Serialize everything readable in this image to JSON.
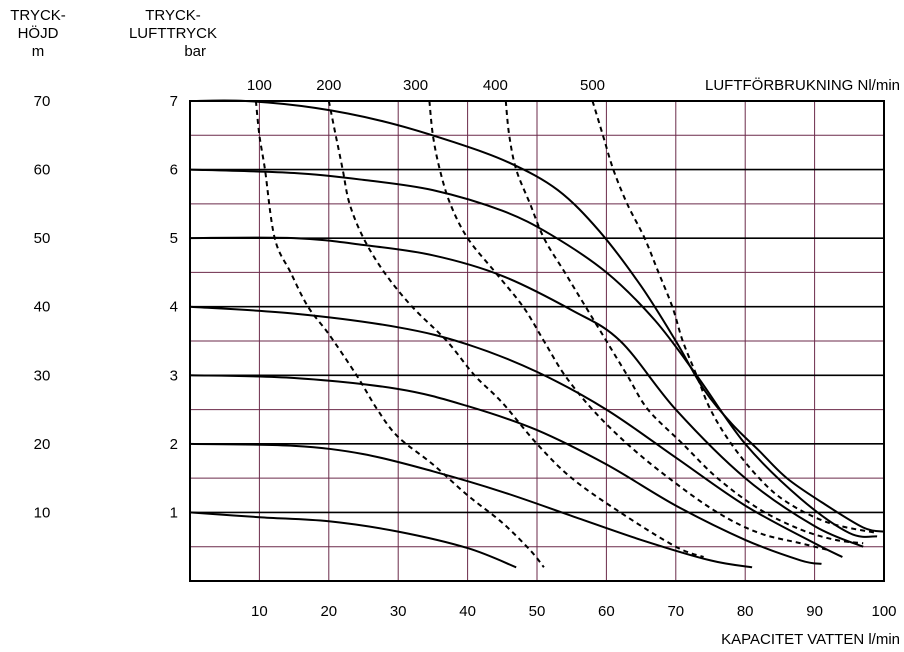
{
  "labels": {
    "left_axis_title": [
      "TRYCK-",
      "HÖJD",
      "m"
    ],
    "right_axis_title": [
      "TRYCK-",
      "LUFTTRYCK",
      "bar"
    ],
    "top_axis_title": "LUFTFÖRBRUKNING Nl/min",
    "bottom_axis_title": "KAPACITET VATTEN l/min"
  },
  "chart_data": {
    "type": "line",
    "title": "",
    "xlabel": "KAPACITET VATTEN l/min",
    "ylabel": "TRYCK-LUFTTRYCK bar",
    "xlim": [
      0,
      100
    ],
    "ylim": [
      0,
      7
    ],
    "x_ticks": [
      "10",
      "20",
      "30",
      "40",
      "50",
      "60",
      "70",
      "80",
      "90",
      "100"
    ],
    "x_tick_values": [
      10,
      20,
      30,
      40,
      50,
      60,
      70,
      80,
      90,
      100
    ],
    "y_ticks": [
      "1",
      "2",
      "3",
      "4",
      "5",
      "6",
      "7"
    ],
    "y_tick_values": [
      1,
      2,
      3,
      4,
      5,
      6,
      7
    ],
    "y2_ticks": [
      "10",
      "20",
      "30",
      "40",
      "50",
      "60",
      "70"
    ],
    "top_ticks": [
      "100",
      "200",
      "300",
      "400",
      "500"
    ],
    "top_tick_x_values": [
      10,
      20,
      32.5,
      44,
      58
    ],
    "grid": true,
    "minor_horizontal_gridlines_step": 0.5,
    "series": [
      {
        "style": "solid",
        "air_pressure_bar": 1,
        "points": [
          [
            0,
            1.0
          ],
          [
            10,
            0.93
          ],
          [
            20,
            0.87
          ],
          [
            30,
            0.72
          ],
          [
            40,
            0.48
          ],
          [
            47,
            0.2
          ]
        ]
      },
      {
        "style": "solid",
        "air_pressure_bar": 2,
        "points": [
          [
            0,
            2.0
          ],
          [
            15,
            1.97
          ],
          [
            25,
            1.85
          ],
          [
            35,
            1.6
          ],
          [
            45,
            1.3
          ],
          [
            55,
            0.95
          ],
          [
            65,
            0.6
          ],
          [
            75,
            0.3
          ],
          [
            81,
            0.2
          ]
        ]
      },
      {
        "style": "solid",
        "air_pressure_bar": 3,
        "points": [
          [
            0,
            3.0
          ],
          [
            15,
            2.96
          ],
          [
            30,
            2.8
          ],
          [
            40,
            2.55
          ],
          [
            50,
            2.2
          ],
          [
            60,
            1.7
          ],
          [
            70,
            1.1
          ],
          [
            80,
            0.6
          ],
          [
            88,
            0.3
          ],
          [
            91,
            0.25
          ]
        ]
      },
      {
        "style": "solid",
        "air_pressure_bar": 4,
        "points": [
          [
            0,
            4.0
          ],
          [
            15,
            3.9
          ],
          [
            30,
            3.7
          ],
          [
            40,
            3.45
          ],
          [
            50,
            3.05
          ],
          [
            60,
            2.5
          ],
          [
            70,
            1.8
          ],
          [
            80,
            1.1
          ],
          [
            90,
            0.55
          ],
          [
            94,
            0.35
          ]
        ]
      },
      {
        "style": "solid",
        "air_pressure_bar": 5,
        "points": [
          [
            0,
            5.0
          ],
          [
            15,
            5.0
          ],
          [
            25,
            4.9
          ],
          [
            35,
            4.75
          ],
          [
            45,
            4.45
          ],
          [
            55,
            3.95
          ],
          [
            62,
            3.5
          ],
          [
            70,
            2.5
          ],
          [
            80,
            1.5
          ],
          [
            90,
            0.8
          ],
          [
            97,
            0.5
          ]
        ]
      },
      {
        "style": "solid",
        "air_pressure_bar": 6,
        "points": [
          [
            0,
            6.0
          ],
          [
            15,
            5.95
          ],
          [
            25,
            5.85
          ],
          [
            35,
            5.7
          ],
          [
            45,
            5.4
          ],
          [
            52,
            5.05
          ],
          [
            60,
            4.5
          ],
          [
            67,
            3.8
          ],
          [
            73,
            3.0
          ],
          [
            80,
            2.0
          ],
          [
            88,
            1.2
          ],
          [
            95,
            0.7
          ],
          [
            99,
            0.65
          ]
        ]
      },
      {
        "style": "solid",
        "air_pressure_bar": 7,
        "points": [
          [
            0,
            7.0
          ],
          [
            8,
            7.0
          ],
          [
            18,
            6.9
          ],
          [
            28,
            6.7
          ],
          [
            38,
            6.4
          ],
          [
            46,
            6.1
          ],
          [
            53,
            5.7
          ],
          [
            59,
            5.1
          ],
          [
            65,
            4.3
          ],
          [
            70,
            3.5
          ],
          [
            74,
            2.8
          ],
          [
            78,
            2.3
          ],
          [
            82,
            1.9
          ],
          [
            86,
            1.5
          ],
          [
            91,
            1.15
          ],
          [
            97,
            0.78
          ],
          [
            100,
            0.72
          ]
        ]
      },
      {
        "style": "dashed",
        "air_consumption_nl_min": 100,
        "points": [
          [
            9.5,
            7.0
          ],
          [
            10,
            6.5
          ],
          [
            10.8,
            6.0
          ],
          [
            12.2,
            5.0
          ],
          [
            14.5,
            4.5
          ],
          [
            17,
            4.0
          ],
          [
            20,
            3.6
          ],
          [
            24,
            3.0
          ],
          [
            27,
            2.5
          ],
          [
            30,
            2.1
          ],
          [
            35,
            1.7
          ],
          [
            40,
            1.25
          ],
          [
            45,
            0.85
          ],
          [
            49,
            0.45
          ],
          [
            51,
            0.2
          ]
        ]
      },
      {
        "style": "dashed",
        "air_consumption_nl_min": 200,
        "points": [
          [
            20,
            7.0
          ],
          [
            21,
            6.5
          ],
          [
            22,
            6.0
          ],
          [
            23,
            5.5
          ],
          [
            25,
            5.0
          ],
          [
            28,
            4.5
          ],
          [
            32,
            4.0
          ],
          [
            37,
            3.5
          ],
          [
            41,
            3.0
          ],
          [
            45,
            2.6
          ],
          [
            50,
            2.0
          ],
          [
            55,
            1.5
          ],
          [
            62,
            1.0
          ],
          [
            70,
            0.5
          ],
          [
            74,
            0.35
          ]
        ]
      },
      {
        "style": "dashed",
        "air_consumption_nl_min": 300,
        "points": [
          [
            34.5,
            7.0
          ],
          [
            35,
            6.5
          ],
          [
            36,
            6.0
          ],
          [
            37.5,
            5.5
          ],
          [
            40,
            5.0
          ],
          [
            44,
            4.5
          ],
          [
            48,
            4.0
          ],
          [
            51,
            3.5
          ],
          [
            54,
            3.0
          ],
          [
            58,
            2.5
          ],
          [
            63,
            2.0
          ],
          [
            69,
            1.5
          ],
          [
            76,
            1.0
          ],
          [
            82,
            0.7
          ],
          [
            88,
            0.55
          ],
          [
            92,
            0.45
          ]
        ]
      },
      {
        "style": "dashed",
        "air_consumption_nl_min": 400,
        "points": [
          [
            45.5,
            7.0
          ],
          [
            46,
            6.5
          ],
          [
            47,
            6.0
          ],
          [
            49,
            5.5
          ],
          [
            51,
            5.0
          ],
          [
            54,
            4.5
          ],
          [
            57,
            4.0
          ],
          [
            60,
            3.5
          ],
          [
            63,
            3.0
          ],
          [
            66,
            2.5
          ],
          [
            71,
            2.0
          ],
          [
            76,
            1.5
          ],
          [
            82,
            1.05
          ],
          [
            88,
            0.75
          ],
          [
            93,
            0.6
          ],
          [
            97,
            0.55
          ]
        ]
      },
      {
        "style": "dashed",
        "air_consumption_nl_min": 500,
        "points": [
          [
            58,
            7.0
          ],
          [
            59.5,
            6.5
          ],
          [
            61,
            6.0
          ],
          [
            63,
            5.5
          ],
          [
            65.5,
            5.0
          ],
          [
            67.5,
            4.5
          ],
          [
            69.5,
            4.0
          ],
          [
            71,
            3.5
          ],
          [
            73,
            3.0
          ],
          [
            75,
            2.5
          ],
          [
            78,
            2.0
          ],
          [
            82,
            1.5
          ],
          [
            86,
            1.15
          ],
          [
            92,
            0.85
          ],
          [
            99,
            0.7
          ]
        ]
      }
    ]
  }
}
